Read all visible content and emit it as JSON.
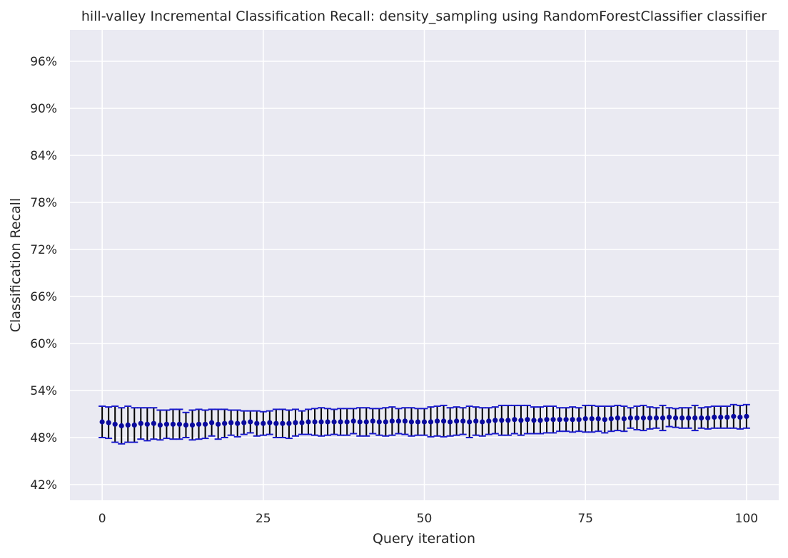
{
  "chart_data": {
    "type": "scatter",
    "title": "hill-valley Incremental Classification Recall: density_sampling using RandomForestClassifier classifier",
    "xlabel": "Query iteration",
    "ylabel": "Classification Recall",
    "xlim": [
      -5,
      105
    ],
    "ylim": [
      40,
      100
    ],
    "x_ticks": [
      0,
      25,
      50,
      75,
      100
    ],
    "y_ticks": [
      42,
      48,
      54,
      60,
      66,
      72,
      78,
      84,
      90,
      96
    ],
    "y_tick_format": "percent",
    "grid": true,
    "legend": "none",
    "colors": {
      "background": "#eaeaf2",
      "grid": "#ffffff",
      "marker": "#0a0a9e",
      "errorbar": "#000000",
      "cap": "#1a1acd"
    },
    "x": [
      0,
      1,
      2,
      3,
      4,
      5,
      6,
      7,
      8,
      9,
      10,
      11,
      12,
      13,
      14,
      15,
      16,
      17,
      18,
      19,
      20,
      21,
      22,
      23,
      24,
      25,
      26,
      27,
      28,
      29,
      30,
      31,
      32,
      33,
      34,
      35,
      36,
      37,
      38,
      39,
      40,
      41,
      42,
      43,
      44,
      45,
      46,
      47,
      48,
      49,
      50,
      51,
      52,
      53,
      54,
      55,
      56,
      57,
      58,
      59,
      60,
      61,
      62,
      63,
      64,
      65,
      66,
      67,
      68,
      69,
      70,
      71,
      72,
      73,
      74,
      75,
      76,
      77,
      78,
      79,
      80,
      81,
      82,
      83,
      84,
      85,
      86,
      87,
      88,
      89,
      90,
      91,
      92,
      93,
      94,
      95,
      96,
      97,
      98,
      99,
      100
    ],
    "values": [
      50.0,
      49.9,
      49.7,
      49.5,
      49.6,
      49.6,
      49.8,
      49.7,
      49.8,
      49.6,
      49.7,
      49.7,
      49.7,
      49.6,
      49.6,
      49.7,
      49.7,
      49.9,
      49.7,
      49.8,
      49.9,
      49.8,
      49.9,
      50.0,
      49.8,
      49.8,
      49.9,
      49.8,
      49.8,
      49.8,
      49.9,
      49.9,
      50.0,
      50.0,
      50.0,
      50.0,
      50.0,
      50.0,
      50.0,
      50.1,
      50.0,
      50.0,
      50.1,
      50.0,
      50.0,
      50.1,
      50.1,
      50.1,
      50.0,
      50.0,
      50.0,
      50.0,
      50.1,
      50.1,
      50.0,
      50.1,
      50.1,
      50.0,
      50.1,
      50.0,
      50.1,
      50.2,
      50.2,
      50.2,
      50.3,
      50.2,
      50.3,
      50.2,
      50.2,
      50.3,
      50.3,
      50.3,
      50.3,
      50.3,
      50.3,
      50.4,
      50.4,
      50.4,
      50.3,
      50.4,
      50.5,
      50.4,
      50.5,
      50.5,
      50.5,
      50.5,
      50.5,
      50.5,
      50.6,
      50.5,
      50.5,
      50.5,
      50.5,
      50.5,
      50.5,
      50.6,
      50.6,
      50.6,
      50.7,
      50.6,
      50.7
    ],
    "upper": [
      52.0,
      51.9,
      52.0,
      51.8,
      52.0,
      51.8,
      51.8,
      51.8,
      51.8,
      51.5,
      51.5,
      51.6,
      51.6,
      51.2,
      51.5,
      51.6,
      51.5,
      51.6,
      51.6,
      51.6,
      51.5,
      51.5,
      51.4,
      51.4,
      51.4,
      51.3,
      51.4,
      51.6,
      51.6,
      51.5,
      51.6,
      51.4,
      51.6,
      51.7,
      51.8,
      51.7,
      51.6,
      51.7,
      51.7,
      51.7,
      51.8,
      51.8,
      51.7,
      51.7,
      51.8,
      51.9,
      51.7,
      51.8,
      51.8,
      51.7,
      51.7,
      51.9,
      52.0,
      52.1,
      51.8,
      51.9,
      51.8,
      52.0,
      51.9,
      51.8,
      51.8,
      51.9,
      52.1,
      52.1,
      52.1,
      52.1,
      52.1,
      51.9,
      51.9,
      52.0,
      52.0,
      51.8,
      51.8,
      51.9,
      51.8,
      52.1,
      52.1,
      52.0,
      52.0,
      52.0,
      52.1,
      52.0,
      51.8,
      52.0,
      52.1,
      51.9,
      51.8,
      52.1,
      51.8,
      51.7,
      51.8,
      51.8,
      52.1,
      51.8,
      51.9,
      52.0,
      52.0,
      52.0,
      52.2,
      52.1,
      52.2
    ],
    "lower": [
      48.0,
      47.9,
      47.4,
      47.2,
      47.4,
      47.4,
      47.8,
      47.6,
      47.8,
      47.7,
      47.9,
      47.8,
      47.8,
      48.0,
      47.7,
      47.8,
      47.9,
      48.2,
      47.8,
      48.0,
      48.3,
      48.1,
      48.4,
      48.6,
      48.2,
      48.3,
      48.4,
      48.0,
      48.0,
      47.9,
      48.2,
      48.4,
      48.4,
      48.3,
      48.2,
      48.3,
      48.4,
      48.3,
      48.3,
      48.5,
      48.2,
      48.2,
      48.5,
      48.3,
      48.2,
      48.3,
      48.5,
      48.4,
      48.2,
      48.3,
      48.3,
      48.1,
      48.2,
      48.1,
      48.2,
      48.3,
      48.4,
      48.0,
      48.3,
      48.2,
      48.4,
      48.5,
      48.3,
      48.3,
      48.5,
      48.3,
      48.5,
      48.5,
      48.5,
      48.6,
      48.6,
      48.8,
      48.8,
      48.7,
      48.8,
      48.7,
      48.7,
      48.8,
      48.6,
      48.8,
      48.9,
      48.8,
      49.2,
      49.0,
      48.9,
      49.1,
      49.2,
      48.9,
      49.4,
      49.3,
      49.2,
      49.2,
      48.9,
      49.2,
      49.1,
      49.2,
      49.2,
      49.2,
      49.2,
      49.1,
      49.2
    ]
  }
}
